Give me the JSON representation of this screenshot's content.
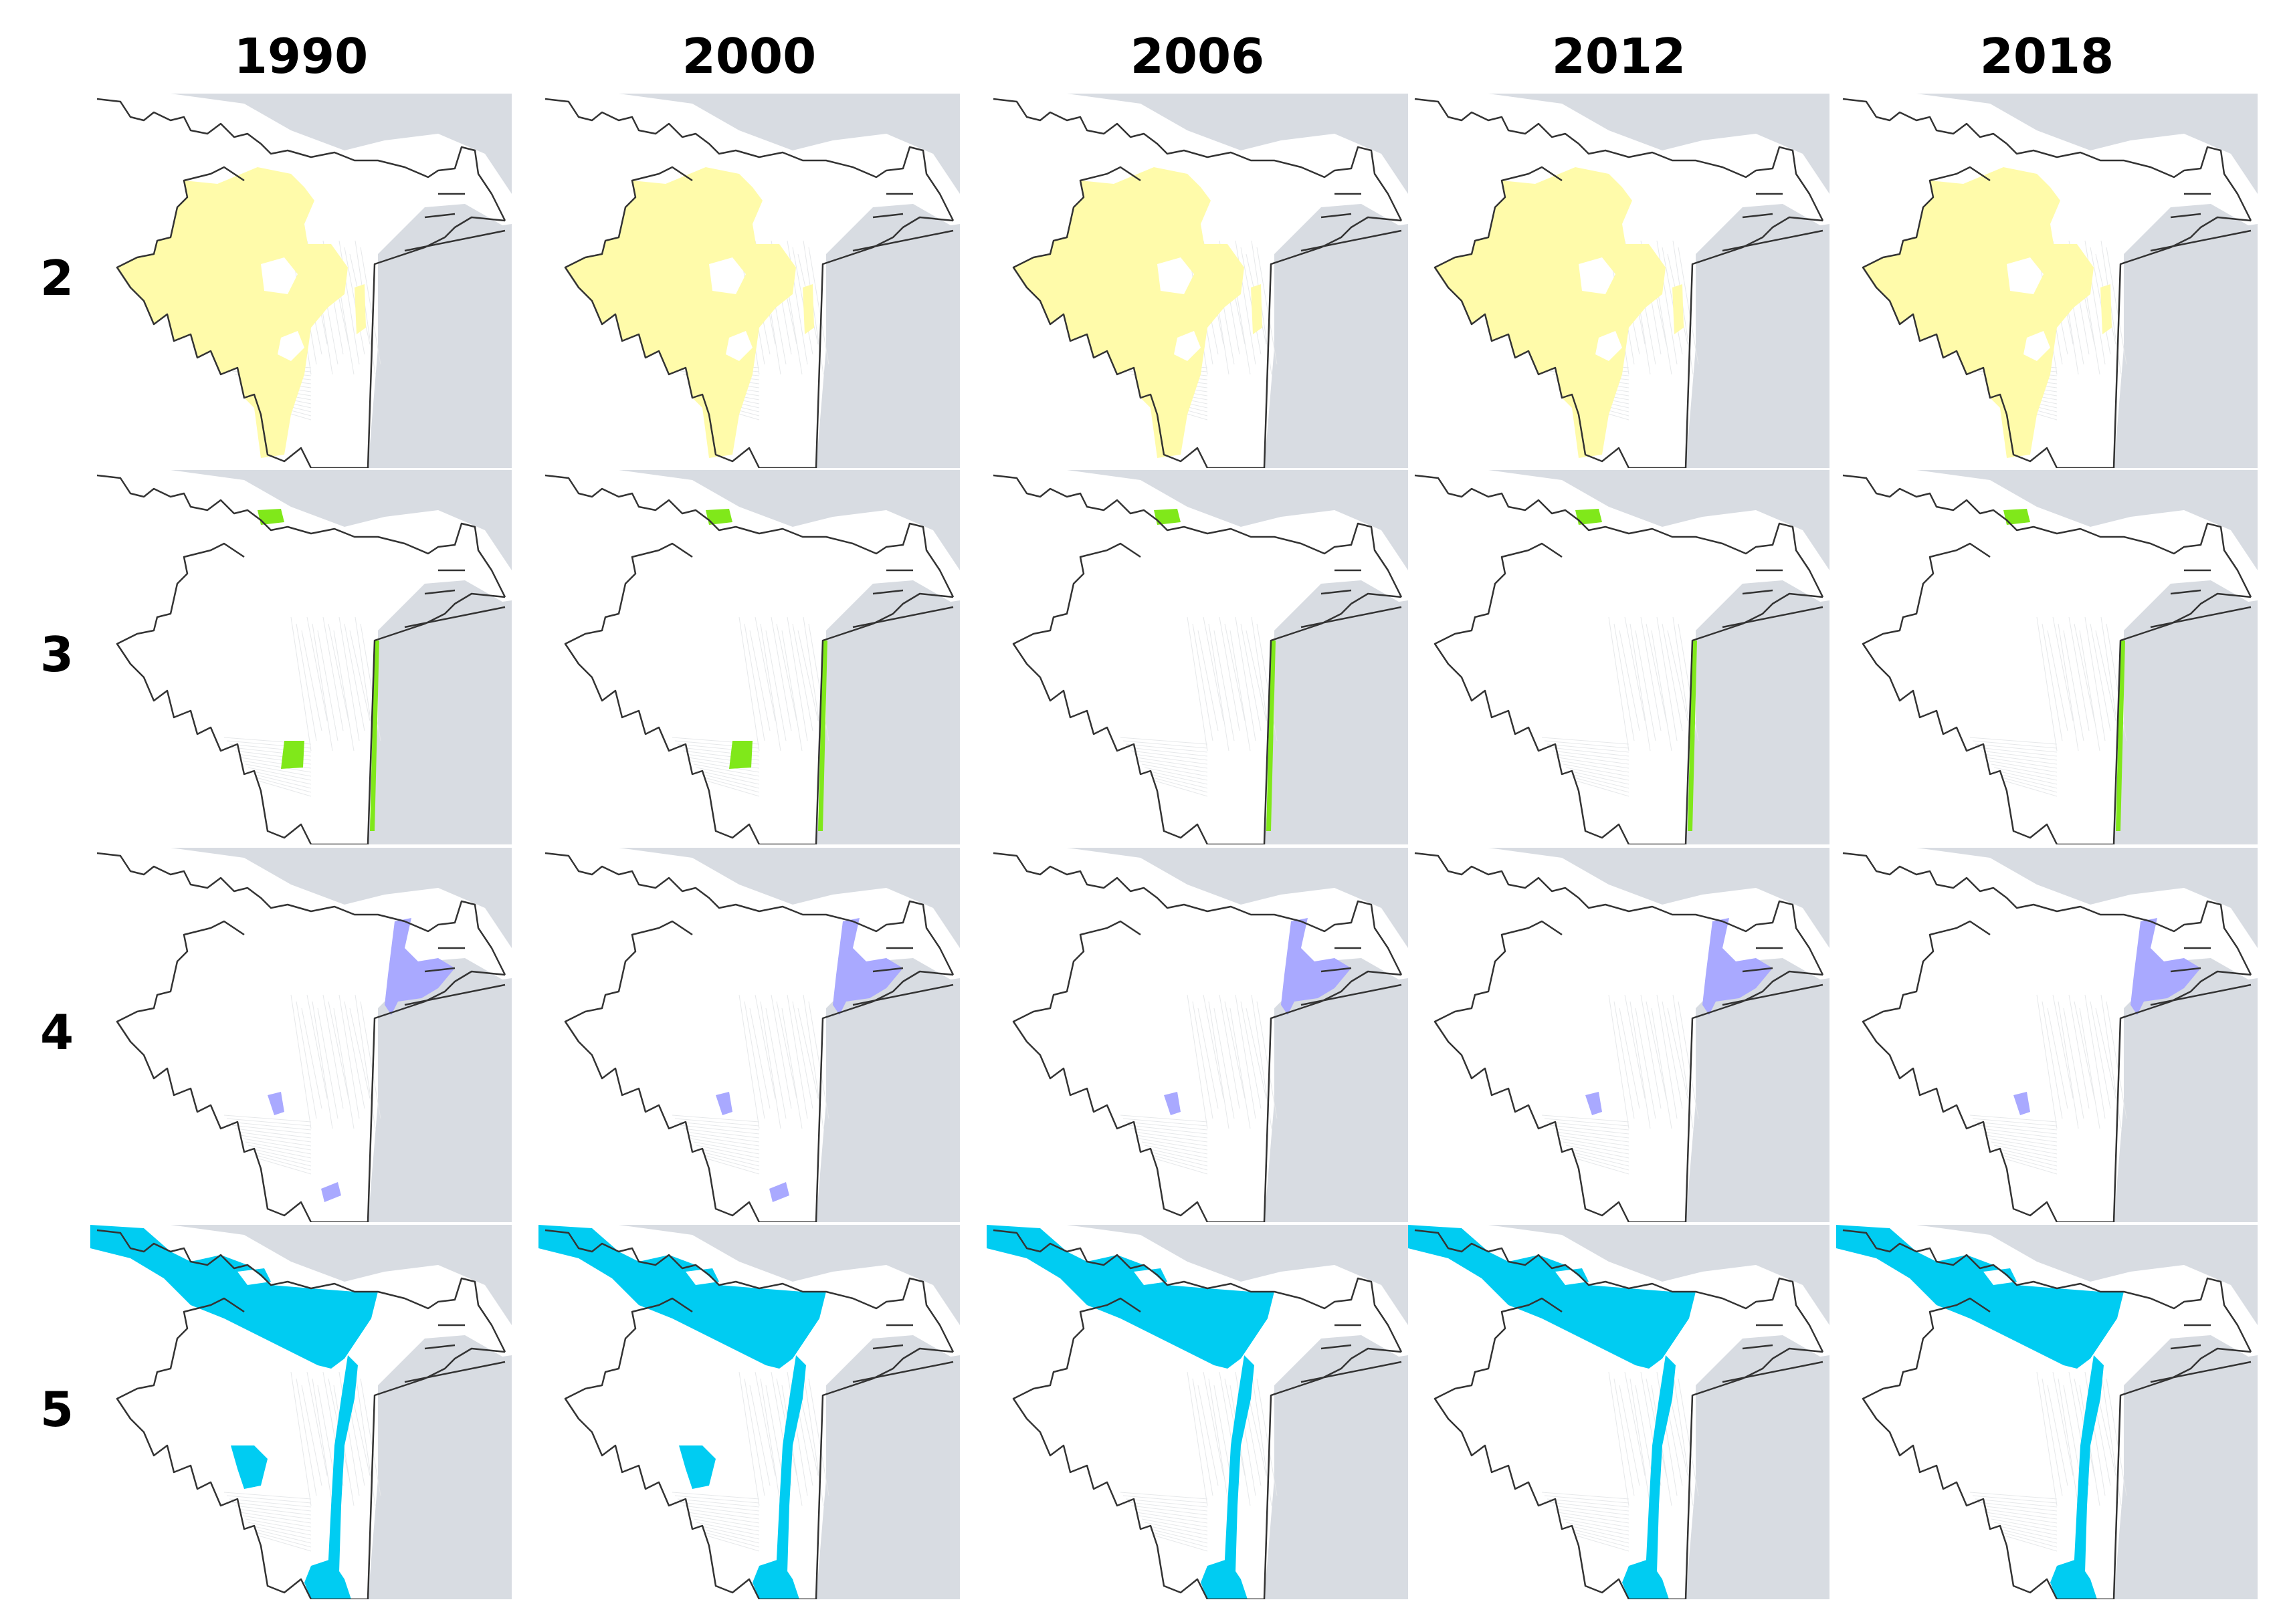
{
  "columns": [
    "1990",
    "2000",
    "2006",
    "2012",
    "2018"
  ],
  "rows": [
    "2",
    "3",
    "4",
    "5"
  ],
  "colors": {
    "water": "#d8dce2",
    "land": "#ffffff",
    "streets": "#e6e8ea",
    "boundary": "#333333",
    "class_2": "#fffbaa",
    "class_3": "#80e81a",
    "class_4": "#a9a9ff",
    "class_5": "#00ccf2"
  },
  "panels_present": {
    "2": [
      [
        "main",
        "east"
      ],
      [
        "main",
        "east"
      ],
      [
        "main",
        "east"
      ],
      [
        "main",
        "east"
      ],
      [
        "main",
        "east"
      ]
    ],
    "3": [
      [
        "north",
        "south",
        "coast"
      ],
      [
        "north",
        "south",
        "coast"
      ],
      [
        "north",
        "coast"
      ],
      [
        "north",
        "coast"
      ],
      [
        "north",
        "coast"
      ]
    ],
    "4": [
      [
        "harbor",
        "mid",
        "south"
      ],
      [
        "harbor",
        "mid",
        "south"
      ],
      [
        "harbor",
        "mid"
      ],
      [
        "harbor",
        "mid"
      ],
      [
        "harbor",
        "mid"
      ]
    ],
    "5": [
      [
        "lagoon",
        "river",
        "pond",
        "south"
      ],
      [
        "lagoon",
        "river",
        "pond",
        "south"
      ],
      [
        "lagoon",
        "river",
        "south"
      ],
      [
        "lagoon",
        "river",
        "south"
      ],
      [
        "lagoon",
        "river",
        "south"
      ]
    ]
  }
}
